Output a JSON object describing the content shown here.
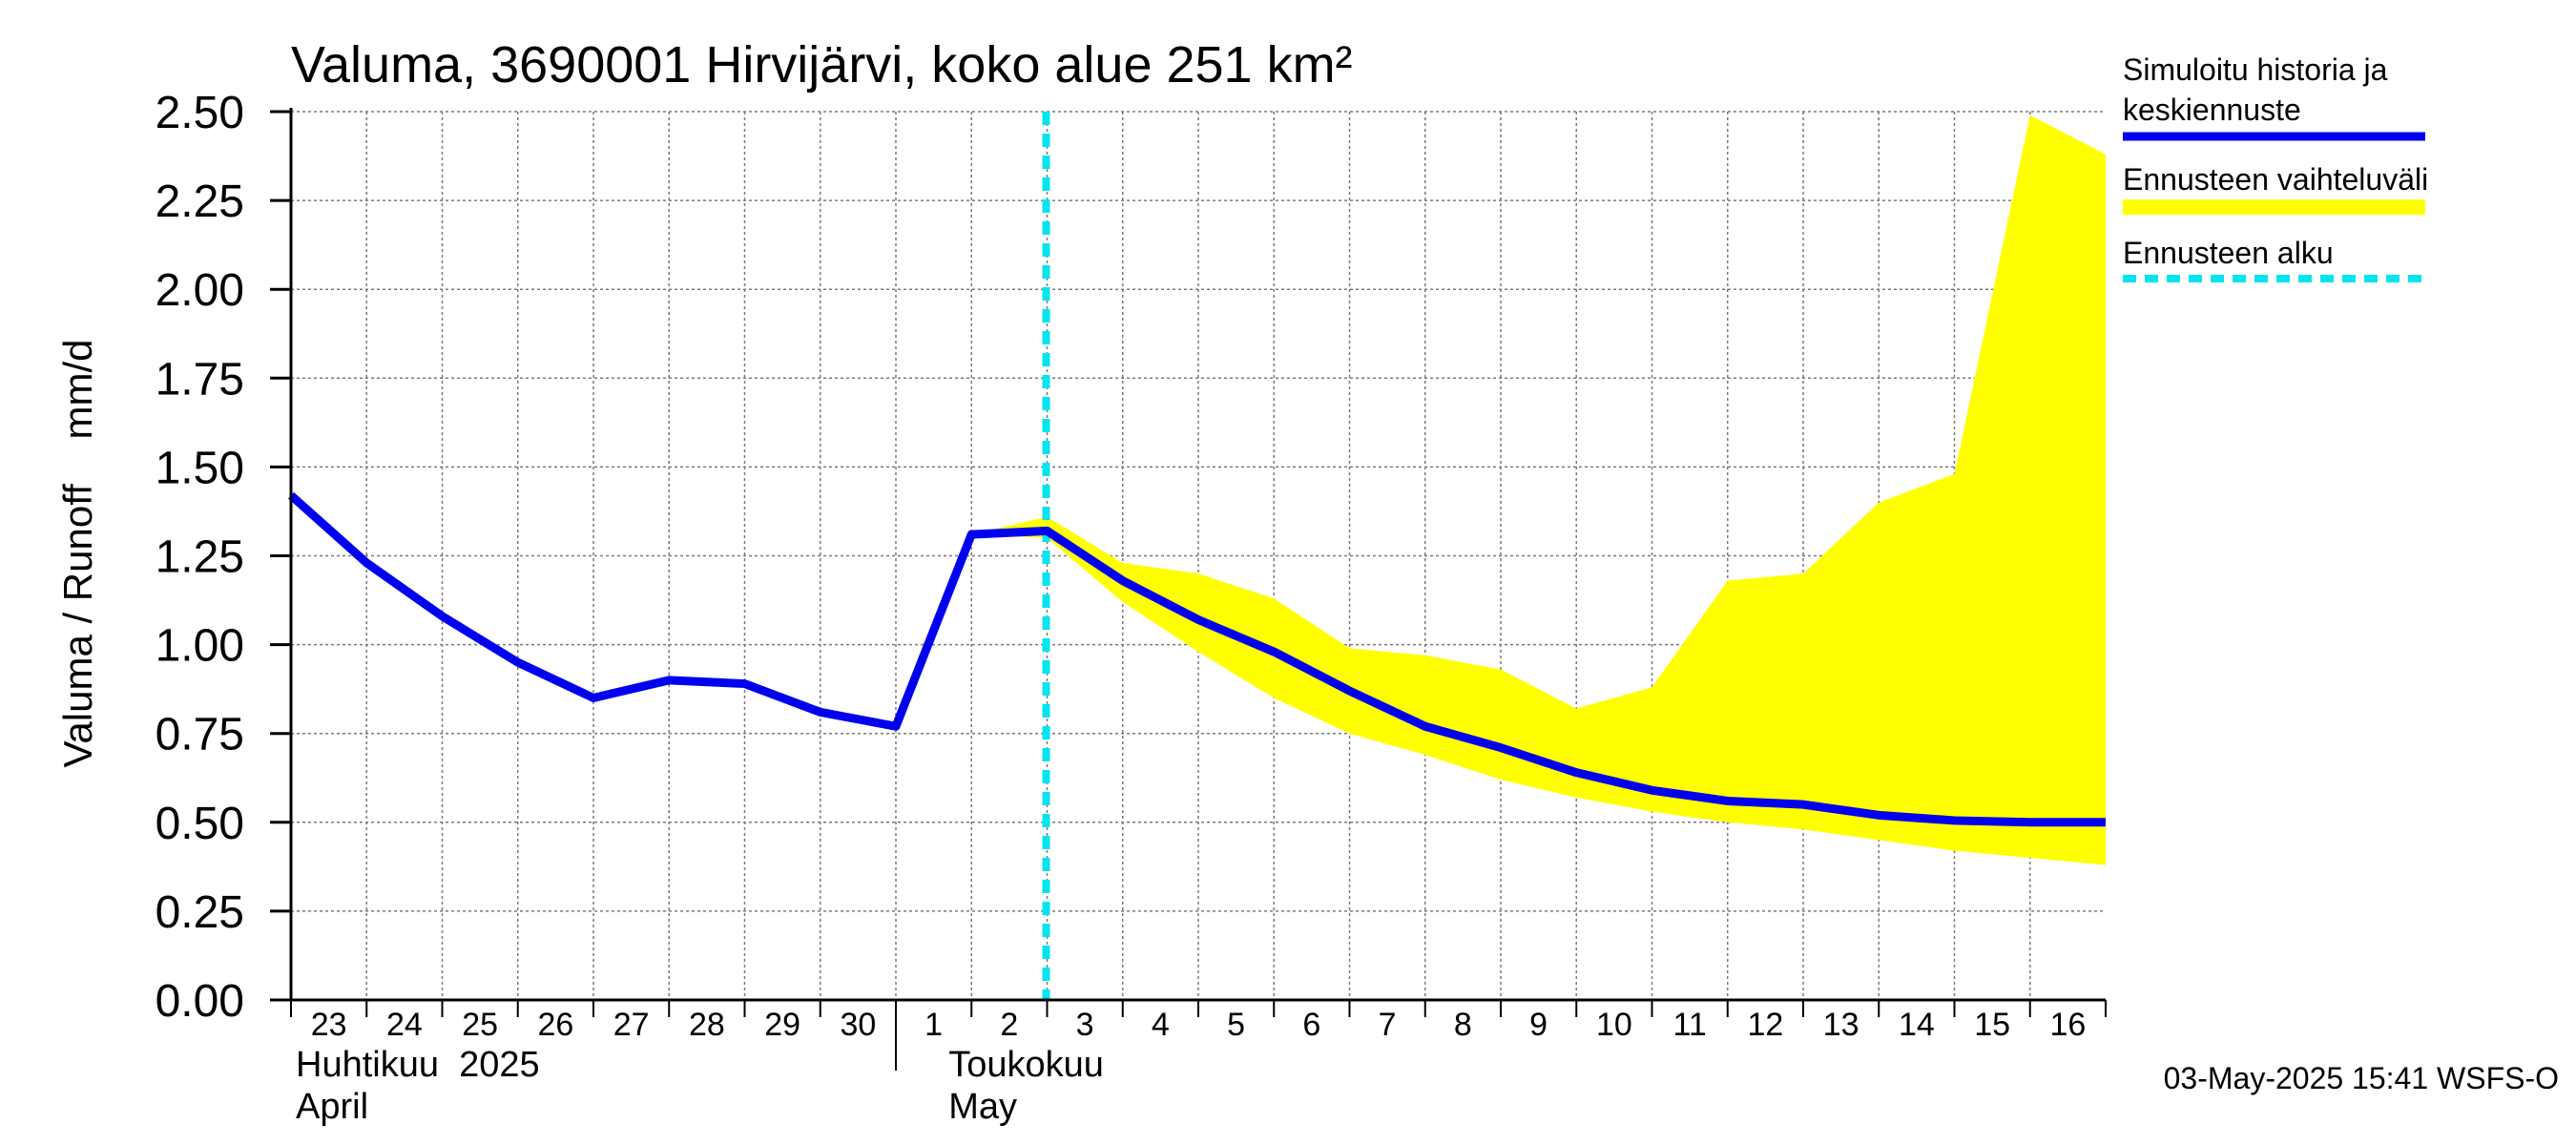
{
  "chart_data": {
    "type": "line",
    "title": "Valuma, 3690001 Hirvijärvi, koko alue 251 km²",
    "ylabel": "Valuma / Runoff    mm/d",
    "ylim": [
      0,
      2.5
    ],
    "yticks": [
      "0.00",
      "0.25",
      "0.50",
      "0.75",
      "1.00",
      "1.25",
      "1.50",
      "1.75",
      "2.00",
      "2.25",
      "2.50"
    ],
    "grid": true,
    "x_day_labels": [
      "23",
      "24",
      "25",
      "26",
      "27",
      "28",
      "29",
      "30",
      "1",
      "2",
      "3",
      "4",
      "5",
      "6",
      "7",
      "8",
      "9",
      "10",
      "11",
      "12",
      "13",
      "14",
      "15",
      "16"
    ],
    "month_labels": [
      {
        "line1": "Huhtikuu  2025",
        "line2": "April"
      },
      {
        "line1": "Toukokuu",
        "line2": "May"
      }
    ],
    "forecast_start": "2025-05-03",
    "series": [
      {
        "name": "Simuloitu historia ja keskiennuste",
        "color": "#0000ee",
        "x": [
          "2025-04-23",
          "2025-04-24",
          "2025-04-25",
          "2025-04-26",
          "2025-04-27",
          "2025-04-28",
          "2025-04-29",
          "2025-04-30",
          "2025-05-01",
          "2025-05-02",
          "2025-05-03",
          "2025-05-04",
          "2025-05-05",
          "2025-05-06",
          "2025-05-07",
          "2025-05-08",
          "2025-05-09",
          "2025-05-10",
          "2025-05-11",
          "2025-05-12",
          "2025-05-13",
          "2025-05-14",
          "2025-05-15",
          "2025-05-16",
          "2025-05-17"
        ],
        "values": [
          1.42,
          1.23,
          1.08,
          0.95,
          0.85,
          0.9,
          0.89,
          0.81,
          0.77,
          1.31,
          1.32,
          1.18,
          1.07,
          0.98,
          0.87,
          0.77,
          0.71,
          0.64,
          0.59,
          0.56,
          0.55,
          0.52,
          0.505,
          0.5,
          0.5
        ]
      },
      {
        "name": "Ennusteen vaihteluväli",
        "color": "#ffff00",
        "x": [
          "2025-05-02",
          "2025-05-03",
          "2025-05-04",
          "2025-05-05",
          "2025-05-06",
          "2025-05-07",
          "2025-05-08",
          "2025-05-09",
          "2025-05-10",
          "2025-05-11",
          "2025-05-12",
          "2025-05-13",
          "2025-05-14",
          "2025-05-15",
          "2025-05-16",
          "2025-05-17"
        ],
        "upper": [
          1.31,
          1.36,
          1.23,
          1.2,
          1.13,
          0.99,
          0.97,
          0.93,
          0.82,
          0.88,
          1.18,
          1.2,
          1.4,
          1.48,
          2.49,
          2.38
        ],
        "lower": [
          1.31,
          1.3,
          1.12,
          0.98,
          0.85,
          0.75,
          0.69,
          0.62,
          0.57,
          0.53,
          0.5,
          0.48,
          0.45,
          0.42,
          0.4,
          0.38
        ]
      },
      {
        "name": "Ennusteen alku",
        "color": "#00e5ee"
      }
    ],
    "legend_placement": "right",
    "legend_lines": [
      [
        "Simuloitu historia ja",
        "keskiennuste"
      ],
      [
        "Ennusteen vaihteluväli"
      ],
      [
        "Ennusteen alku"
      ]
    ]
  },
  "footer": "03-May-2025 15:41 WSFS-O"
}
